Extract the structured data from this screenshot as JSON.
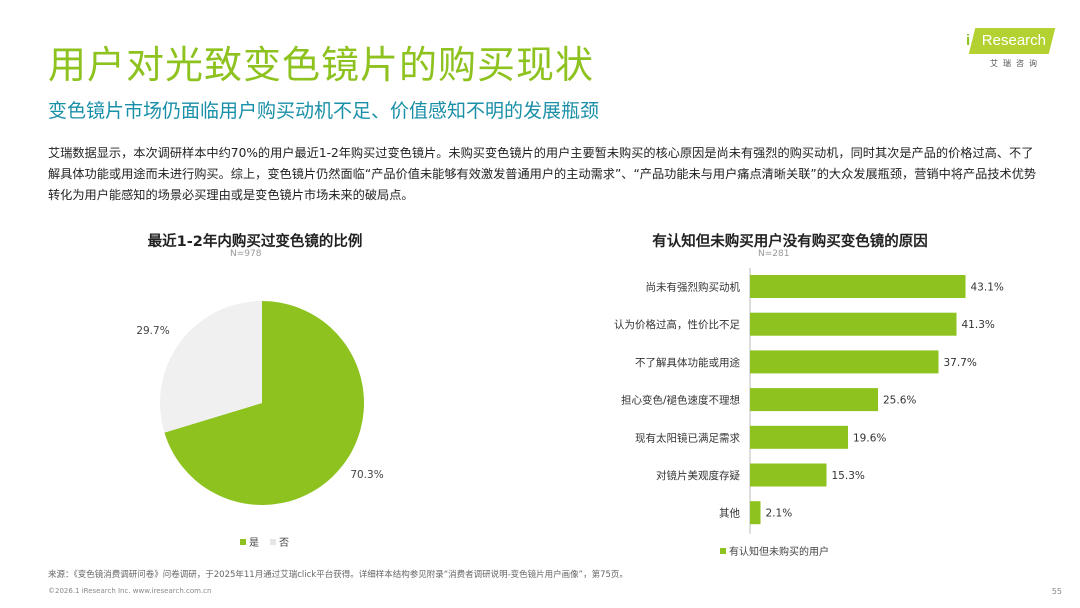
{
  "title": "用户对光致变色镜片的购买现状",
  "subtitle": "变色镜片市场仍面临用户购买动机不足、价值感知不明的发展瓶颈",
  "body": "艾瑞数据显示，本次调研样本中约70%的用户最近1-2年购买过变色镜片。未购买变色镜片的用户主要暂未购买的核心原因是尚未有强烈的购买动机，同时其次是产品的价格过高、不了解具体功能或用途而未进行购买。综上，变色镜片仍然面临“产品价值未能够有效激发普通用户的主动需求”、“产品功能未与用户痛点清晰关联”的大众发展瓶颈，营销中将产品技术优势转化为用户能感知的场景必买理由或是变色镜片市场未来的破局点。",
  "logo": {
    "text": "Research",
    "i": "i",
    "sub": "艾瑞咨询"
  },
  "colors": {
    "green": "#8dc21f",
    "gray": "#f0f0f0",
    "teal": "#1a8fa8"
  },
  "chart_data": [
    {
      "type": "pie",
      "title": "最近1-2年内购买过变色镜的比例",
      "n": "N=978",
      "categories": [
        "是",
        "否"
      ],
      "values": [
        70.3,
        29.7
      ],
      "labels": [
        "70.3%",
        "29.7%"
      ],
      "colors": [
        "#8dc21f",
        "#f0f0f0"
      ],
      "legend": "bottom"
    },
    {
      "type": "bar",
      "orientation": "horizontal",
      "title": "有认知但未购买用户没有购买变色镜的原因",
      "n": "N=281",
      "categories": [
        "尚未有强烈购买动机",
        "认为价格过高，性价比不足",
        "不了解具体功能或用途",
        "担心变色/褪色速度不理想",
        "现有太阳镜已满足需求",
        "对镜片美观度存疑",
        "其他"
      ],
      "series": [
        {
          "name": "有认知但未购买的用户",
          "values": [
            43.1,
            41.3,
            37.7,
            25.6,
            19.6,
            15.3,
            2.1
          ]
        }
      ],
      "value_labels": [
        "43.1%",
        "41.3%",
        "37.7%",
        "25.6%",
        "19.6%",
        "15.3%",
        "2.1%"
      ],
      "color": "#8dc21f",
      "legend": "bottom"
    }
  ],
  "source": "来源：《变色镜消费调研问卷》问卷调研，于2025年11月通过艾瑞click平台获得。详细样本结构参见附录“消费者调研说明-变色镜片用户画像”，第75页。",
  "copyright": "©2026.1 iResearch Inc.                           www.iresearch.com.cn",
  "page": "55"
}
